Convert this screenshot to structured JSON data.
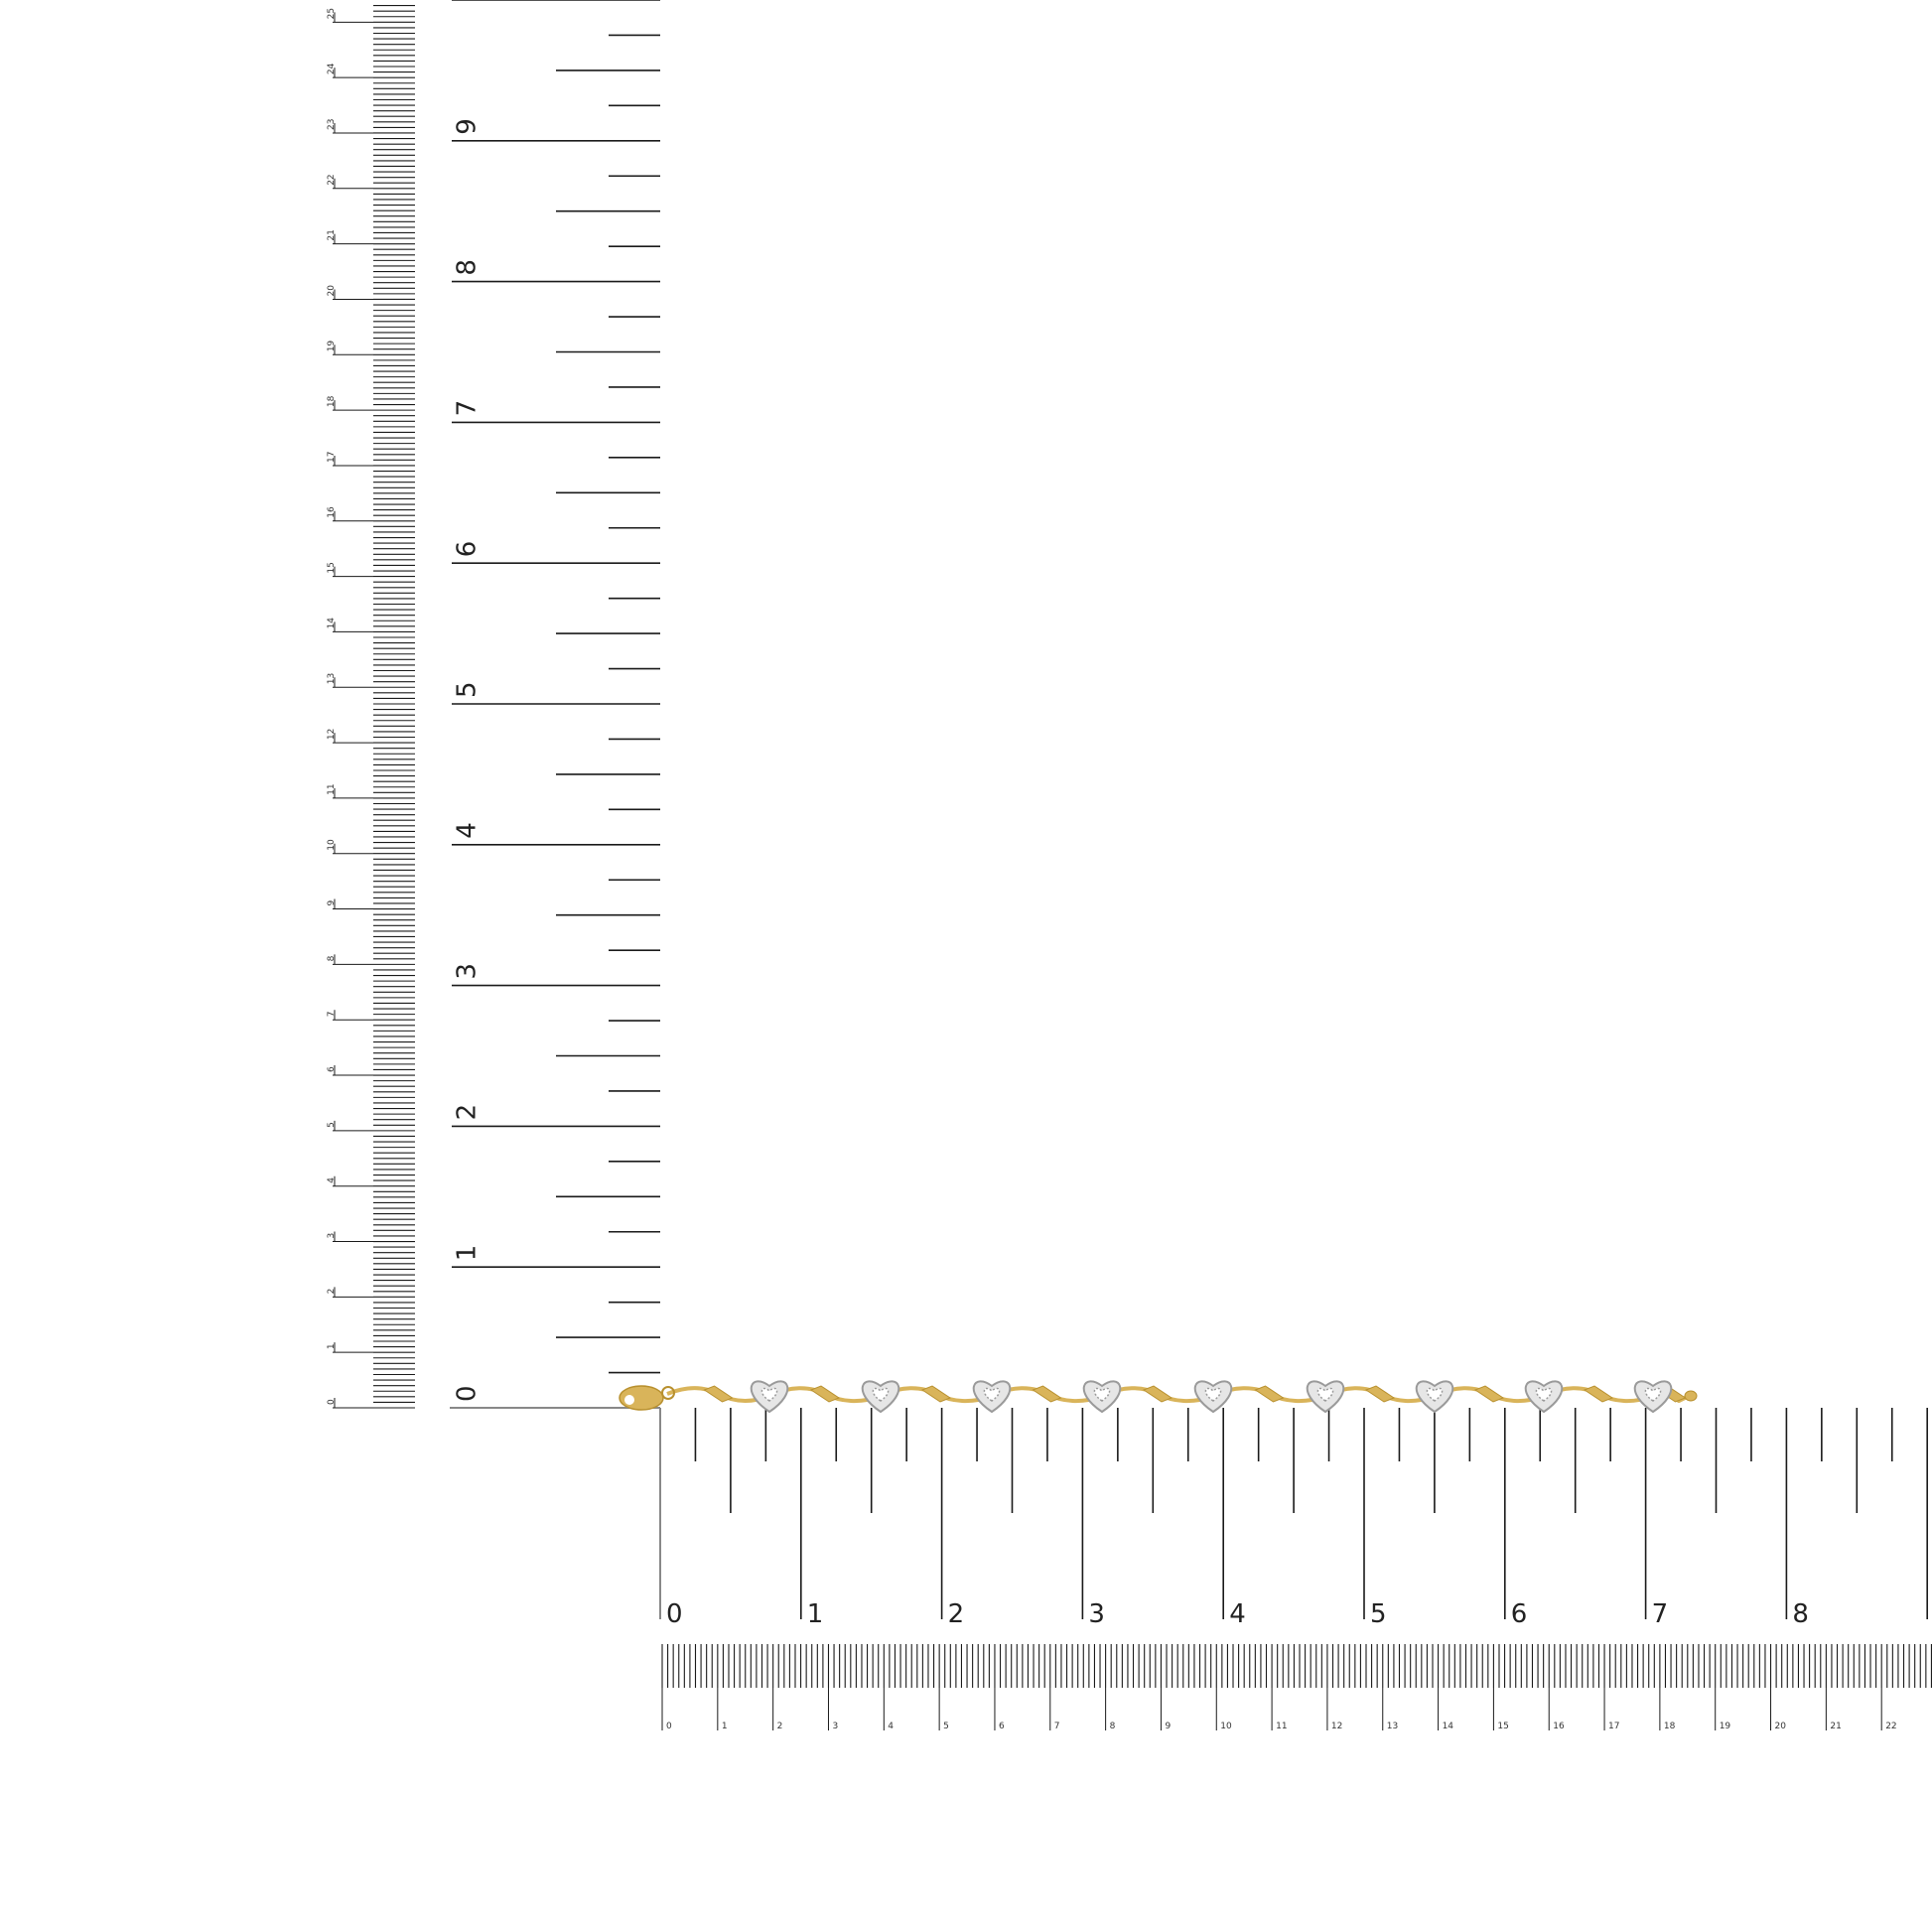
{
  "rulers": {
    "vertical_inch": {
      "unit": "inch",
      "labels": [
        "0",
        "1",
        "2",
        "3",
        "4",
        "5",
        "6",
        "7",
        "8",
        "9"
      ]
    },
    "vertical_cm": {
      "unit": "cm",
      "labels": [
        "0",
        "1",
        "2",
        "3",
        "4",
        "5",
        "6",
        "7",
        "8",
        "9",
        "10",
        "11",
        "12",
        "13",
        "14",
        "15",
        "16",
        "17",
        "18",
        "19",
        "20",
        "21",
        "22",
        "23",
        "24",
        "25"
      ]
    },
    "horizontal_inch": {
      "unit": "inch",
      "labels": [
        "0",
        "1",
        "2",
        "3",
        "4",
        "5",
        "6",
        "7",
        "8"
      ]
    },
    "horizontal_cm": {
      "unit": "cm",
      "labels": [
        "0",
        "1",
        "2",
        "3",
        "4",
        "5",
        "6",
        "7",
        "8",
        "9",
        "10",
        "11",
        "12",
        "13",
        "14",
        "15",
        "16",
        "17",
        "18",
        "19",
        "20",
        "21",
        "22"
      ]
    }
  },
  "product": {
    "type": "bracelet",
    "heart_charm_count": 9,
    "length_inch": 7.25,
    "colors": {
      "gold": "#d9b45a",
      "gold_dark": "#b8902e",
      "white_gold": "#e6e6e6",
      "diamond": "#9a9a9a"
    }
  },
  "colors": {
    "ruler_ink": "#1a1a1a",
    "background": "#ffffff"
  }
}
